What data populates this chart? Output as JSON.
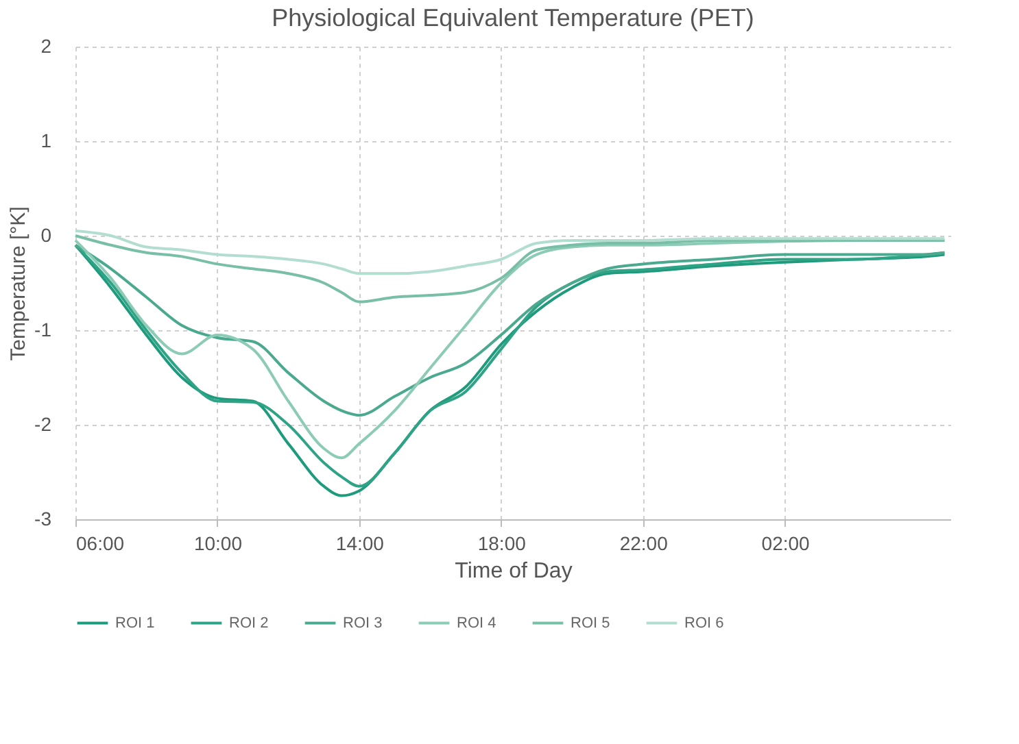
{
  "chart_data": {
    "type": "line",
    "title": "Physiological Equivalent Temperature (PET)",
    "xlabel": "Time of Day",
    "ylabel": "Temperature [°K]",
    "x": [
      "--01-01T06:00",
      "--01-01T07:00",
      "--01-01T08:00",
      "--01-01T09:00",
      "--01-01T10:00",
      "--01-01T11:00",
      "--01-01T12:00",
      "--01-01T13:00",
      "--01-01T13:30",
      "--01-01T14:00",
      "--01-01T15:00",
      "--01-01T16:00",
      "--01-01T17:00",
      "--01-01T18:00",
      "--01-01T19:00",
      "--01-01T20:00",
      "--01-01T21:00",
      "--01-01T22:00",
      "--01-02T00:00",
      "--01-02T02:00",
      "--01-02T04:00",
      "--01-02T06:00",
      "--01-02T06:30"
    ],
    "xlim": [
      "--01-01T06:00",
      "--01-02T06:40"
    ],
    "xticks": [
      {
        "value": "--01-01T06:00",
        "label": "06:00"
      },
      {
        "value": "--01-01T10:00",
        "label": "10:00"
      },
      {
        "value": "--01-01T14:00",
        "label": "14:00"
      },
      {
        "value": "--01-01T18:00",
        "label": "18:00"
      },
      {
        "value": "--01-01T22:00",
        "label": "22:00"
      },
      {
        "value": "--01-02T02:00",
        "label": "02:00"
      }
    ],
    "ylim": [
      -3,
      2
    ],
    "yticks": [
      -3,
      -2,
      -1,
      0,
      1,
      2
    ],
    "grid": true,
    "legend": "bottom",
    "marker": "none",
    "line_style": "solid",
    "series": [
      {
        "name": "ROI 1",
        "color": "#1e9a7c",
        "values": [
          -0.1,
          -0.55,
          -1.05,
          -1.5,
          -1.72,
          -1.75,
          -2.2,
          -2.65,
          -2.75,
          -2.7,
          -2.3,
          -1.85,
          -1.6,
          -1.15,
          -0.8,
          -0.55,
          -0.4,
          -0.38,
          -0.32,
          -0.28,
          -0.25,
          -0.22,
          -0.2
        ]
      },
      {
        "name": "ROI 2",
        "color": "#2ea386",
        "values": [
          -0.1,
          -0.5,
          -1.0,
          -1.45,
          -1.75,
          -1.76,
          -2.0,
          -2.4,
          -2.55,
          -2.65,
          -2.3,
          -1.85,
          -1.65,
          -1.2,
          -0.75,
          -0.5,
          -0.38,
          -0.36,
          -0.3,
          -0.25,
          -0.25,
          -0.2,
          -0.18
        ]
      },
      {
        "name": "ROI 3",
        "color": "#4aa98e",
        "values": [
          -0.1,
          -0.35,
          -0.65,
          -0.95,
          -1.08,
          -1.12,
          -1.45,
          -1.75,
          -1.85,
          -1.9,
          -1.7,
          -1.5,
          -1.35,
          -1.05,
          -0.72,
          -0.5,
          -0.35,
          -0.3,
          -0.25,
          -0.2,
          -0.2,
          -0.2,
          -0.18
        ]
      },
      {
        "name": "ROI 4",
        "color": "#8ccbb6",
        "values": [
          -0.05,
          -0.45,
          -0.95,
          -1.25,
          -1.05,
          -1.2,
          -1.75,
          -2.25,
          -2.35,
          -2.2,
          -1.85,
          -1.4,
          -0.95,
          -0.5,
          -0.2,
          -0.12,
          -0.1,
          -0.1,
          -0.08,
          -0.06,
          -0.05,
          -0.05,
          -0.05
        ]
      },
      {
        "name": "ROI 5",
        "color": "#79bfa8",
        "values": [
          0,
          -0.1,
          -0.18,
          -0.22,
          -0.3,
          -0.35,
          -0.4,
          -0.5,
          -0.6,
          -0.7,
          -0.65,
          -0.63,
          -0.6,
          -0.45,
          -0.15,
          -0.1,
          -0.08,
          -0.08,
          -0.05,
          -0.05,
          -0.05,
          -0.05,
          -0.05
        ]
      },
      {
        "name": "ROI 6",
        "color": "#b3ddd0",
        "values": [
          0.05,
          0,
          -0.12,
          -0.15,
          -0.2,
          -0.22,
          -0.25,
          -0.3,
          -0.35,
          -0.4,
          -0.4,
          -0.38,
          -0.32,
          -0.25,
          -0.08,
          -0.05,
          -0.05,
          -0.05,
          -0.03,
          -0.03,
          -0.03,
          -0.03,
          -0.03
        ]
      }
    ]
  }
}
